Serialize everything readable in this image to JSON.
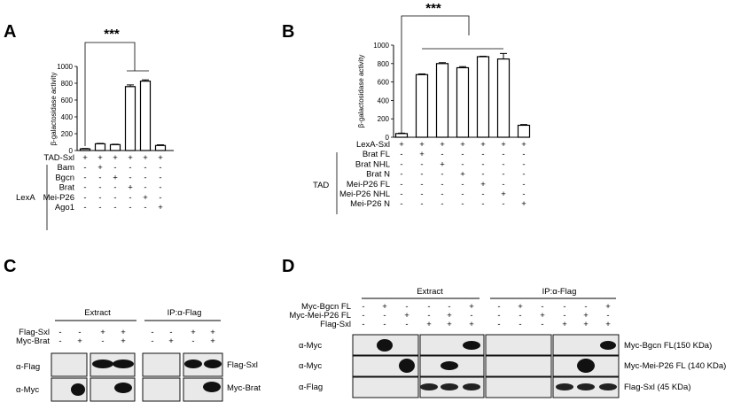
{
  "panels": {
    "a": "A",
    "b": "B",
    "c": "C",
    "d": "D"
  },
  "charts": [
    {
      "type": "bar",
      "panel": "A",
      "ylabel": "β-galactosidase activity",
      "ylim": [
        0,
        1000
      ],
      "yticks": [
        "0",
        "200",
        "400",
        "600",
        "800",
        "1000"
      ],
      "values": [
        20,
        80,
        70,
        760,
        825,
        60
      ],
      "errors": [
        5,
        5,
        5,
        20,
        15,
        8
      ],
      "significance": "***",
      "rows": [
        {
          "label": "TAD-Sxl",
          "signs": [
            "+",
            "+",
            "+",
            "+",
            "+",
            "+"
          ]
        },
        {
          "label": "Bam",
          "signs": [
            "-",
            "+",
            "-",
            "-",
            "-",
            "-"
          ]
        },
        {
          "label": "Bgcn",
          "signs": [
            "-",
            "-",
            "+",
            "-",
            "-",
            "-"
          ]
        },
        {
          "label": "Brat",
          "signs": [
            "-",
            "-",
            "-",
            "+",
            "-",
            "-"
          ]
        },
        {
          "label": "Mei-P26",
          "signs": [
            "-",
            "-",
            "-",
            "-",
            "+",
            "-"
          ]
        },
        {
          "label": "Ago1",
          "signs": [
            "-",
            "-",
            "-",
            "-",
            "-",
            "+"
          ]
        }
      ],
      "group_label": "LexA"
    },
    {
      "type": "bar",
      "panel": "B",
      "ylabel": "β-galactosidase activity",
      "ylim": [
        0,
        1000
      ],
      "yticks": [
        "0",
        "200",
        "400",
        "600",
        "800",
        "1000"
      ],
      "values": [
        40,
        680,
        800,
        755,
        875,
        850,
        130
      ],
      "errors": [
        5,
        8,
        10,
        12,
        5,
        60,
        8
      ],
      "significance": "***",
      "rows": [
        {
          "label": "LexA-Sxl",
          "signs": [
            "+",
            "+",
            "+",
            "+",
            "+",
            "+",
            "+"
          ]
        },
        {
          "label": "Brat FL",
          "signs": [
            "-",
            "+",
            "-",
            "-",
            "-",
            "-",
            "-"
          ]
        },
        {
          "label": "Brat NHL",
          "signs": [
            "-",
            "-",
            "+",
            "-",
            "-",
            "-",
            "-"
          ]
        },
        {
          "label": "Brat N",
          "signs": [
            "-",
            "-",
            "-",
            "+",
            "-",
            "-",
            "-"
          ]
        },
        {
          "label": "Mei-P26 FL",
          "signs": [
            "-",
            "-",
            "-",
            "-",
            "+",
            "-",
            "-"
          ]
        },
        {
          "label": "Mei-P26 NHL",
          "signs": [
            "-",
            "-",
            "-",
            "-",
            "-",
            "+",
            "-"
          ]
        },
        {
          "label": "Mei-P26 N",
          "signs": [
            "-",
            "-",
            "-",
            "-",
            "-",
            "-",
            "+"
          ]
        }
      ],
      "group_label": "TAD"
    }
  ],
  "blot_c": {
    "extract": "Extract",
    "ip": "IP:α-Flag",
    "rows": [
      {
        "label": "Flag-Sxl",
        "signs": [
          "-",
          "-",
          "+",
          "+",
          "-",
          "-",
          "+",
          "+"
        ]
      },
      {
        "label": "Myc-Brat",
        "signs": [
          "-",
          "+",
          "-",
          "+",
          "-",
          "+",
          "-",
          "+"
        ]
      }
    ],
    "antibodies": [
      "α-Flag",
      "α-Myc"
    ],
    "bands": [
      "Flag-Sxl",
      "Myc-Brat"
    ]
  },
  "blot_d": {
    "extract": "Extract",
    "ip": "IP:α-Flag",
    "rows": [
      {
        "label": "Myc-Bgcn FL",
        "signs": [
          "-",
          "+",
          "-",
          "-",
          "-",
          "+",
          "-",
          "+",
          "-",
          "-",
          "-",
          "+"
        ]
      },
      {
        "label": "Myc-Mei-P26 FL",
        "signs": [
          "-",
          "-",
          "+",
          "-",
          "+",
          "-",
          "-",
          "-",
          "+",
          "-",
          "+",
          "-"
        ]
      },
      {
        "label": "Flag-Sxl",
        "signs": [
          "-",
          "-",
          "-",
          "+",
          "+",
          "+",
          "-",
          "-",
          "-",
          "+",
          "+",
          "+"
        ]
      }
    ],
    "antibodies": [
      "α-Myc",
      "α-Myc",
      "α-Flag"
    ],
    "bands": [
      "Myc-Bgcn FL(150 KDa)",
      "Myc-Mei-P26 FL (140 KDa)",
      "Flag-Sxl (45 KDa)"
    ]
  }
}
